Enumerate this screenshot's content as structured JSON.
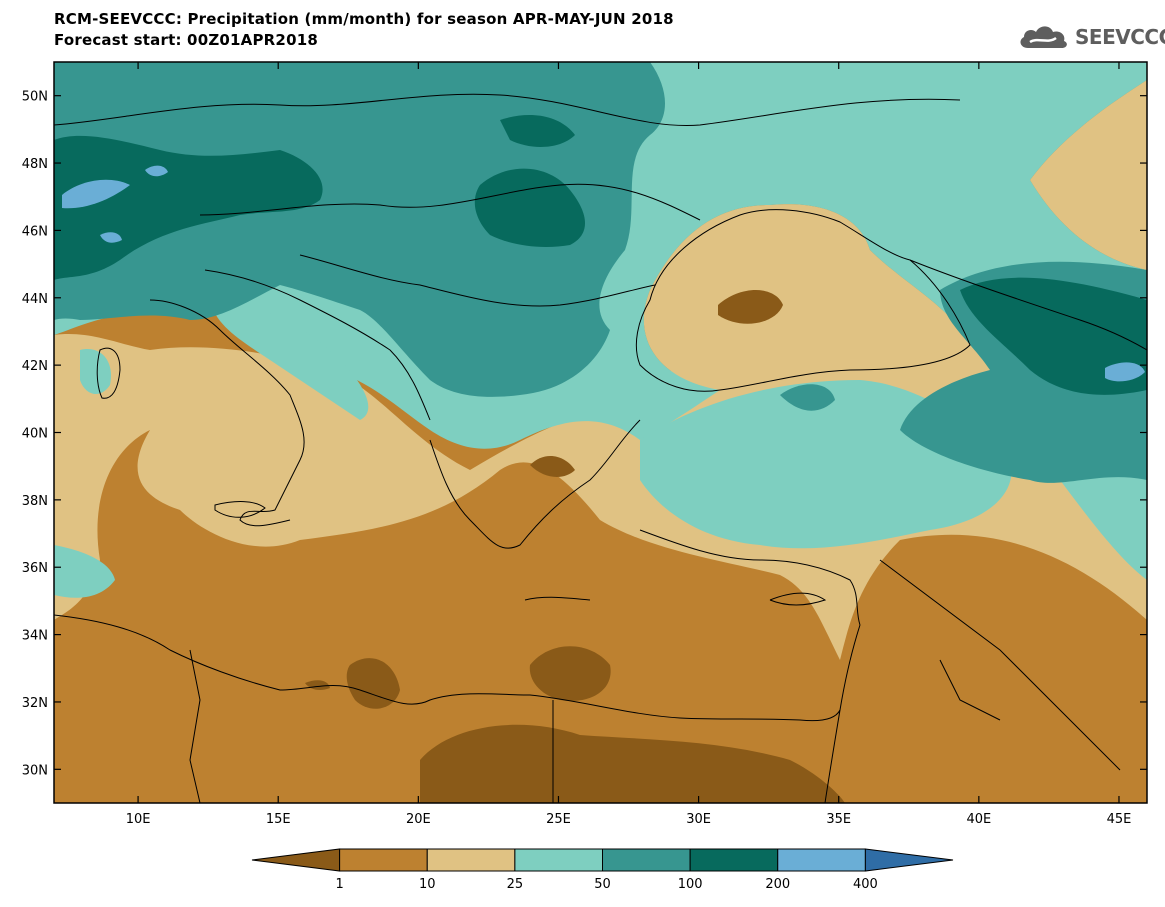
{
  "header": {
    "title_line1": "RCM-SEEVCCC: Precipitation (mm/month) for season APR-MAY-JUN 2018",
    "title_line2": "Forecast start: 00Z01APR2018"
  },
  "logo": {
    "icon": "cloud-icon",
    "text": "SEEVCCC"
  },
  "map": {
    "variable": "Precipitation (mm/month)",
    "lon_range": [
      7,
      46
    ],
    "lat_range": [
      29,
      51
    ],
    "lat_ticks": [
      {
        "value": 50,
        "label": "50N"
      },
      {
        "value": 48,
        "label": "48N"
      },
      {
        "value": 46,
        "label": "46N"
      },
      {
        "value": 44,
        "label": "44N"
      },
      {
        "value": 42,
        "label": "42N"
      },
      {
        "value": 40,
        "label": "40N"
      },
      {
        "value": 38,
        "label": "38N"
      },
      {
        "value": 36,
        "label": "36N"
      },
      {
        "value": 34,
        "label": "34N"
      },
      {
        "value": 32,
        "label": "32N"
      },
      {
        "value": 30,
        "label": "30N"
      }
    ],
    "lon_ticks": [
      {
        "value": 10,
        "label": "10E"
      },
      {
        "value": 15,
        "label": "15E"
      },
      {
        "value": 20,
        "label": "20E"
      },
      {
        "value": 25,
        "label": "25E"
      },
      {
        "value": 30,
        "label": "30E"
      },
      {
        "value": 35,
        "label": "35E"
      },
      {
        "value": 40,
        "label": "40E"
      },
      {
        "value": 45,
        "label": "45E"
      }
    ]
  },
  "colorbar": {
    "under_color": "#8a5a18",
    "over_color": "#2f6da6",
    "bins": [
      {
        "color": "#bd8130"
      },
      {
        "color": "#e0c283"
      },
      {
        "color": "#7ecfc0"
      },
      {
        "color": "#379690"
      },
      {
        "color": "#076a5d"
      },
      {
        "color": "#6aaed6"
      }
    ],
    "labels": [
      "1",
      "10",
      "25",
      "50",
      "100",
      "200",
      "400"
    ]
  }
}
